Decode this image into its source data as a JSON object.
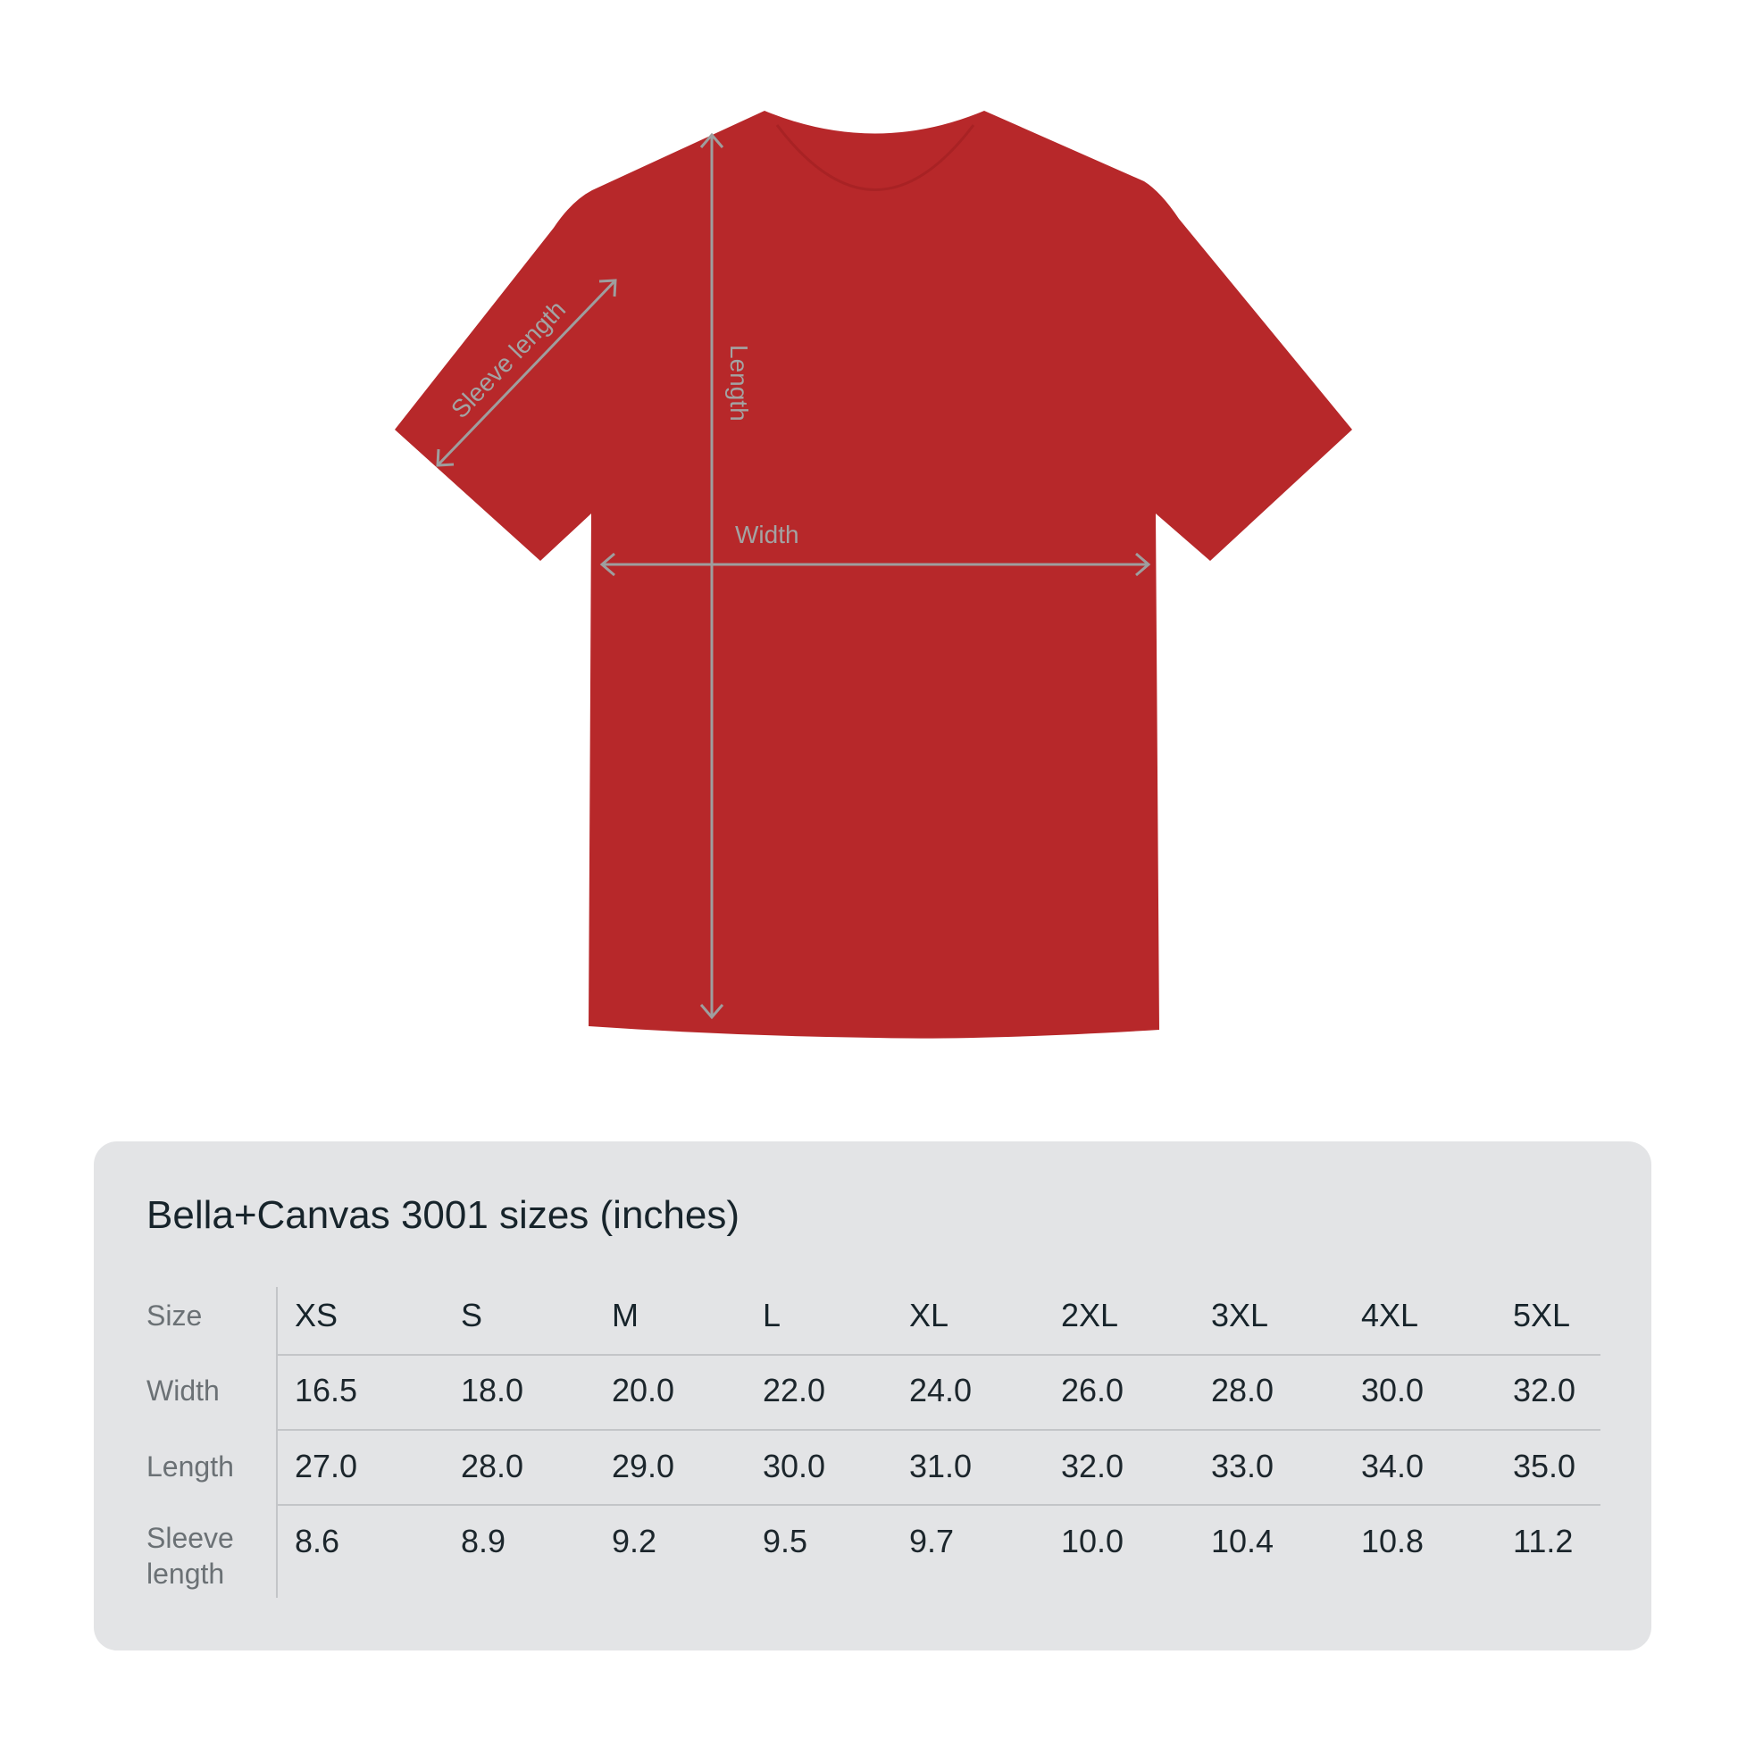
{
  "colors": {
    "shirt": "#b7282a",
    "measure_lines": "#9e9e9e",
    "panel": "#e3e4e6"
  },
  "diagram": {
    "sleeve_label": "Sleeve length",
    "length_label": "Length",
    "width_label": "Width"
  },
  "table": {
    "title": "Bella+Canvas 3001 sizes (inches)",
    "row_labels": [
      "Size",
      "Width",
      "Length",
      "Sleeve",
      "length"
    ],
    "sizes": [
      "XS",
      "S",
      "M",
      "L",
      "XL",
      "2XL",
      "3XL",
      "4XL",
      "5XL"
    ],
    "width": [
      "16.5",
      "18.0",
      "20.0",
      "22.0",
      "24.0",
      "26.0",
      "28.0",
      "30.0",
      "32.0"
    ],
    "length": [
      "27.0",
      "28.0",
      "29.0",
      "30.0",
      "31.0",
      "32.0",
      "33.0",
      "34.0",
      "35.0"
    ],
    "sleeve_length": [
      "8.6",
      "8.9",
      "9.2",
      "9.5",
      "9.7",
      "10.0",
      "10.4",
      "10.8",
      "11.2"
    ]
  }
}
